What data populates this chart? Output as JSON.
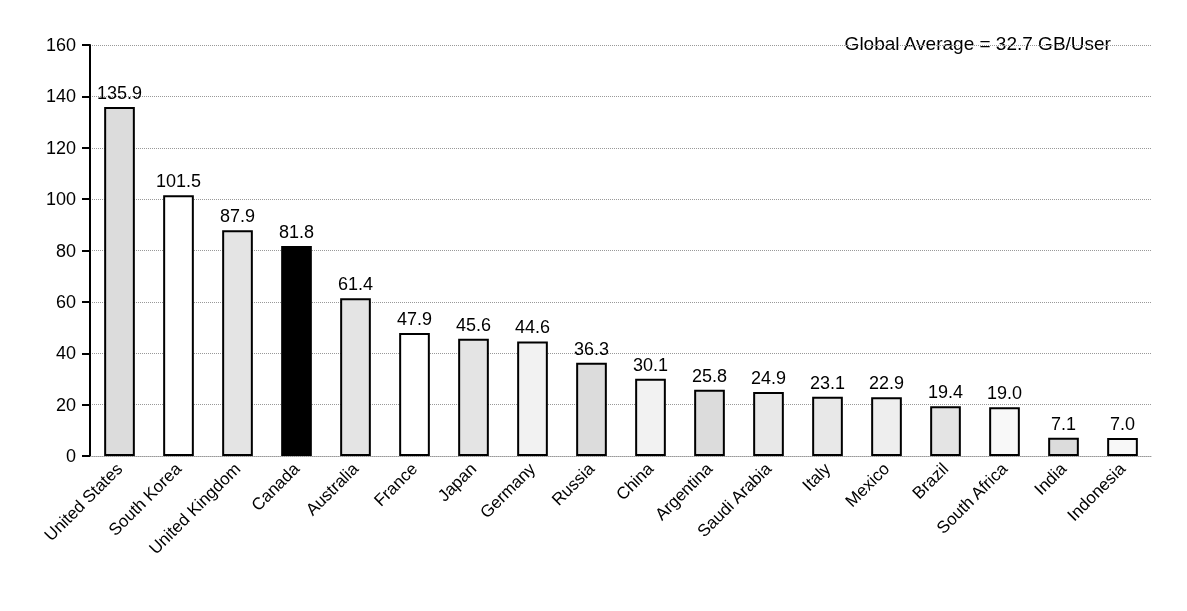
{
  "chart_data": {
    "type": "bar",
    "categories": [
      "United States",
      "South Korea",
      "United Kingdom",
      "Canada",
      "Australia",
      "France",
      "Japan",
      "Germany",
      "Russia",
      "China",
      "Argentina",
      "Saudi Arabia",
      "Italy",
      "Mexico",
      "Brazil",
      "South Africa",
      "India",
      "Indonesia"
    ],
    "values": [
      135.9,
      101.5,
      87.9,
      81.8,
      61.4,
      47.9,
      45.6,
      44.6,
      36.3,
      30.1,
      25.8,
      24.9,
      23.1,
      22.9,
      19.4,
      19.0,
      7.1,
      7.0
    ],
    "value_labels": [
      "135.9",
      "101.5",
      "87.9",
      "81.8",
      "61.4",
      "47.9",
      "45.6",
      "44.6",
      "36.3",
      "30.1",
      "25.8",
      "24.9",
      "23.1",
      "22.9",
      "19.4",
      "19.0",
      "7.1",
      "7.0"
    ],
    "colors": [
      "#dcdcdc",
      "#ffffff",
      "#e4e4e4",
      "#000000",
      "#e4e4e4",
      "#ffffff",
      "#e4e4e4",
      "#f2f2f2",
      "#dcdcdc",
      "#f2f2f2",
      "#dcdcdc",
      "#e8e8e8",
      "#e8e8e8",
      "#eeeeee",
      "#e4e4e4",
      "#f8f8f8",
      "#dcdcdc",
      "#f8f8f8"
    ],
    "ylim": [
      0,
      160
    ],
    "yticks": [
      0,
      20,
      40,
      60,
      80,
      100,
      120,
      140,
      160
    ],
    "annotations": [
      "Global Average = 32.7 GB/User"
    ],
    "grid": "y"
  }
}
